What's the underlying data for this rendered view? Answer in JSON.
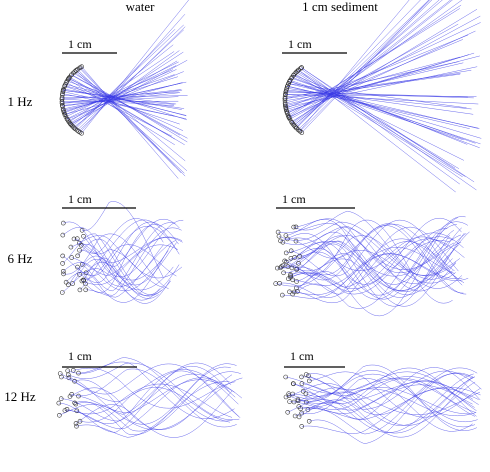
{
  "columns": [
    "water",
    "1 cm sediment"
  ],
  "rows": [
    "1 Hz",
    "6 Hz",
    "12 Hz"
  ],
  "panels": [
    {
      "scale_label": "1 cm"
    },
    {
      "scale_label": "1 cm"
    },
    {
      "scale_label": "1 cm"
    },
    {
      "scale_label": "1 cm"
    },
    {
      "scale_label": "1 cm"
    },
    {
      "scale_label": "1 cm"
    }
  ]
}
